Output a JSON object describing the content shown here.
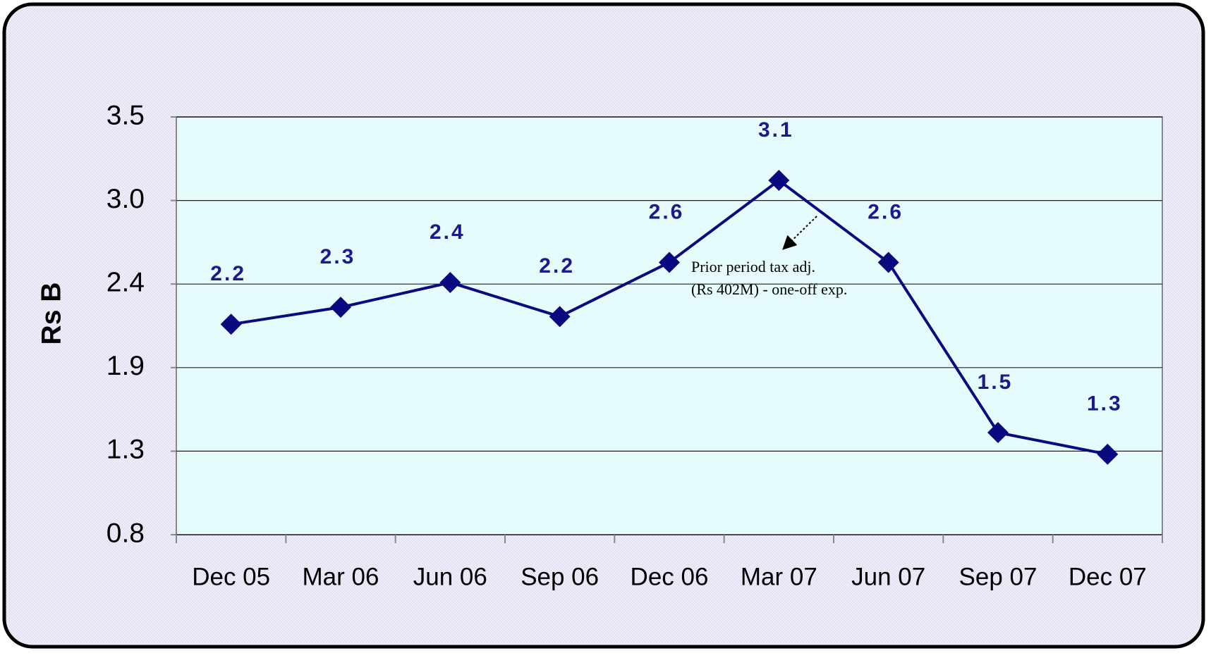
{
  "chart_data": {
    "type": "line",
    "ylabel": "Rs B",
    "categories": [
      "Dec 05",
      "Mar 06",
      "Jun 06",
      "Sep 06",
      "Dec 06",
      "Mar 07",
      "Jun 07",
      "Sep 07",
      "Dec 07"
    ],
    "values": [
      2.16,
      2.27,
      2.43,
      2.21,
      2.56,
      3.09,
      2.56,
      1.46,
      1.32
    ],
    "value_labels": [
      "2.2",
      "2.3",
      "2.4",
      "2.2",
      "2.6",
      "3.1",
      "2.6",
      "1.5",
      "1.3"
    ],
    "color": "#0a0a80",
    "ylim": [
      0.8,
      3.5
    ],
    "yticks": [
      0.8,
      {
        "value": 1.34,
        "label": "1.3"
      },
      {
        "value": 1.88,
        "label": "1.9"
      },
      {
        "value": 2.42,
        "label": "2.4"
      },
      {
        "value": 2.96,
        "label": "3.0"
      },
      3.5
    ],
    "grid": true,
    "annotation": [
      "Prior period tax adj.",
      "(Rs 402M) - one-off exp."
    ]
  }
}
